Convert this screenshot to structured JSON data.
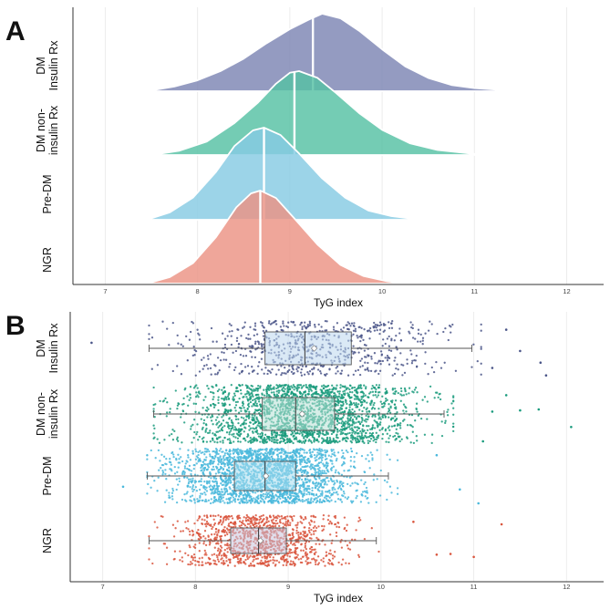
{
  "chart_data": [
    {
      "panel": "A",
      "type": "ridgeline-density",
      "xlabel": "TyG index",
      "xlim": [
        6.65,
        12.4
      ],
      "xticks": [
        "7",
        "8",
        "9",
        "10",
        "11",
        "12"
      ],
      "groups": [
        {
          "label": [
            "DM",
            "Insulin Rx"
          ],
          "median": 9.25,
          "color": "#7c85b3",
          "density": [
            [
              7.45,
              0.0
            ],
            [
              7.75,
              0.06
            ],
            [
              8.0,
              0.14
            ],
            [
              8.25,
              0.26
            ],
            [
              8.5,
              0.42
            ],
            [
              8.75,
              0.62
            ],
            [
              9.0,
              0.8
            ],
            [
              9.2,
              0.92
            ],
            [
              9.35,
              1.0
            ],
            [
              9.55,
              0.94
            ],
            [
              9.75,
              0.78
            ],
            [
              10.0,
              0.54
            ],
            [
              10.25,
              0.32
            ],
            [
              10.5,
              0.17
            ],
            [
              10.75,
              0.08
            ],
            [
              11.0,
              0.04
            ],
            [
              11.3,
              0.015
            ],
            [
              11.5,
              0.01
            ],
            [
              11.8,
              0.0
            ]
          ]
        },
        {
          "label": [
            "DM non-",
            "insulin Rx"
          ],
          "median": 9.05,
          "color": "#55c1a3",
          "density": [
            [
              7.5,
              0.0
            ],
            [
              7.8,
              0.05
            ],
            [
              8.1,
              0.16
            ],
            [
              8.4,
              0.38
            ],
            [
              8.65,
              0.62
            ],
            [
              8.85,
              0.85
            ],
            [
              9.0,
              0.98
            ],
            [
              9.1,
              1.0
            ],
            [
              9.3,
              0.92
            ],
            [
              9.5,
              0.74
            ],
            [
              9.75,
              0.5
            ],
            [
              10.0,
              0.3
            ],
            [
              10.3,
              0.14
            ],
            [
              10.6,
              0.06
            ],
            [
              10.9,
              0.025
            ],
            [
              11.1,
              0.0
            ]
          ]
        },
        {
          "label": [
            "Pre-DM"
          ],
          "median": 8.72,
          "color": "#86cbe3",
          "density": [
            [
              7.45,
              0.0
            ],
            [
              7.7,
              0.08
            ],
            [
              7.95,
              0.24
            ],
            [
              8.2,
              0.52
            ],
            [
              8.4,
              0.8
            ],
            [
              8.6,
              0.97
            ],
            [
              8.72,
              1.0
            ],
            [
              8.9,
              0.92
            ],
            [
              9.1,
              0.72
            ],
            [
              9.35,
              0.45
            ],
            [
              9.6,
              0.24
            ],
            [
              9.85,
              0.1
            ],
            [
              10.1,
              0.04
            ],
            [
              10.3,
              0.015
            ],
            [
              10.5,
              0.0
            ]
          ]
        },
        {
          "label": [
            "NGR"
          ],
          "median": 8.68,
          "color": "#ec9384",
          "density": [
            [
              7.45,
              0.0
            ],
            [
              7.7,
              0.07
            ],
            [
              7.95,
              0.22
            ],
            [
              8.2,
              0.5
            ],
            [
              8.42,
              0.82
            ],
            [
              8.58,
              0.97
            ],
            [
              8.68,
              1.0
            ],
            [
              8.85,
              0.92
            ],
            [
              9.05,
              0.7
            ],
            [
              9.3,
              0.42
            ],
            [
              9.55,
              0.2
            ],
            [
              9.8,
              0.08
            ],
            [
              10.05,
              0.025
            ],
            [
              10.25,
              0.0
            ]
          ]
        }
      ]
    },
    {
      "panel": "B",
      "type": "boxplot-jitter",
      "xlabel": "TyG index",
      "xlim": [
        6.65,
        12.4
      ],
      "xticks": [
        "7",
        "8",
        "9",
        "10",
        "11",
        "12"
      ],
      "groups": [
        {
          "label": [
            "DM",
            "Insulin Rx"
          ],
          "color": "#4a5588",
          "box_color": "#bcd7ee",
          "whisker_low": 7.5,
          "q1": 8.75,
          "median": 9.18,
          "q3": 9.68,
          "whisker_high": 10.98,
          "mean": 9.28,
          "n_points": 700,
          "sd": 0.72,
          "outliers": [
            6.88,
            11.2,
            11.35,
            11.5,
            11.72,
            11.78
          ]
        },
        {
          "label": [
            "DM non-",
            "insulin Rx"
          ],
          "color": "#1a9b7d",
          "box_color": "#b6e0d6",
          "whisker_low": 7.55,
          "q1": 8.72,
          "median": 9.08,
          "q3": 9.5,
          "whisker_high": 10.68,
          "mean": 9.15,
          "n_points": 2200,
          "sd": 0.6,
          "outliers": [
            11.1,
            11.2,
            11.35,
            11.5,
            11.7,
            12.05
          ]
        },
        {
          "label": [
            "Pre-DM"
          ],
          "color": "#4ab8dc",
          "box_color": "#a8dcef",
          "whisker_low": 7.48,
          "q1": 8.42,
          "median": 8.75,
          "q3": 9.08,
          "whisker_high": 10.08,
          "mean": 8.76,
          "n_points": 2200,
          "sd": 0.48,
          "outliers": [
            7.22,
            10.6,
            10.85,
            11.05
          ]
        },
        {
          "label": [
            "NGR"
          ],
          "color": "#d9553d",
          "box_color": "#c8c4dd",
          "whisker_low": 7.5,
          "q1": 8.38,
          "median": 8.68,
          "q3": 8.98,
          "whisker_high": 9.95,
          "mean": 8.7,
          "n_points": 1100,
          "sd": 0.43,
          "outliers": [
            10.35,
            10.6,
            10.75,
            11.0,
            11.3
          ]
        }
      ]
    }
  ],
  "panel_a_label": "A",
  "panel_b_label": "B"
}
